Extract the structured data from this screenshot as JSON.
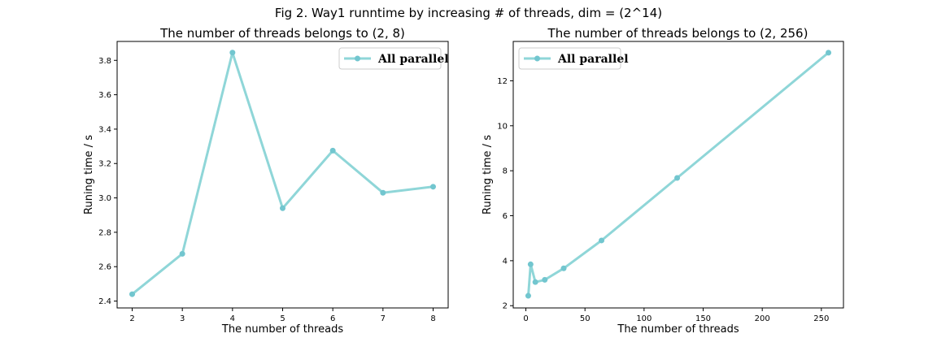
{
  "figure_title": "Fig 2. Way1 runntime by increasing # of threads, dim = (2^14)",
  "line_color": "#8fd6d8",
  "marker_color": "#72c6cf",
  "chart_data": [
    {
      "type": "line",
      "title": "The number of threads belongs to (2, 8)",
      "xlabel": "The number of threads",
      "ylabel": "Runing time / s",
      "xlim": [
        1.7,
        8.3
      ],
      "ylim": [
        2.36,
        3.91
      ],
      "xticks": [
        2,
        3,
        4,
        5,
        6,
        7,
        8
      ],
      "yticks": [
        2.4,
        2.6,
        2.8,
        3.0,
        3.2,
        3.4,
        3.6,
        3.8
      ],
      "ytick_labels": [
        "2.4",
        "2.6",
        "2.8",
        "3.0",
        "3.2",
        "3.4",
        "3.6",
        "3.8"
      ],
      "legend_position": "top-right",
      "series": [
        {
          "name": "All parallel",
          "x": [
            2,
            3,
            4,
            5,
            6,
            7,
            8
          ],
          "y": [
            2.44,
            2.675,
            3.845,
            2.94,
            3.275,
            3.03,
            3.065
          ]
        }
      ]
    },
    {
      "type": "line",
      "title": "The number of threads belongs to (2, 256)",
      "xlabel": "The number of threads",
      "ylabel": "Runing time / s",
      "xlim": [
        -10.7,
        268.7
      ],
      "ylim": [
        1.9,
        13.75
      ],
      "xticks": [
        0,
        50,
        100,
        150,
        200,
        250
      ],
      "yticks": [
        2,
        4,
        6,
        8,
        10,
        12
      ],
      "ytick_labels": [
        "2",
        "4",
        "6",
        "8",
        "10",
        "12"
      ],
      "legend_position": "top-left",
      "series": [
        {
          "name": "All parallel",
          "x": [
            2,
            4,
            8,
            16,
            32,
            64,
            128,
            256
          ],
          "y": [
            2.44,
            3.84,
            3.05,
            3.15,
            3.66,
            4.9,
            7.68,
            13.25
          ]
        }
      ]
    }
  ]
}
